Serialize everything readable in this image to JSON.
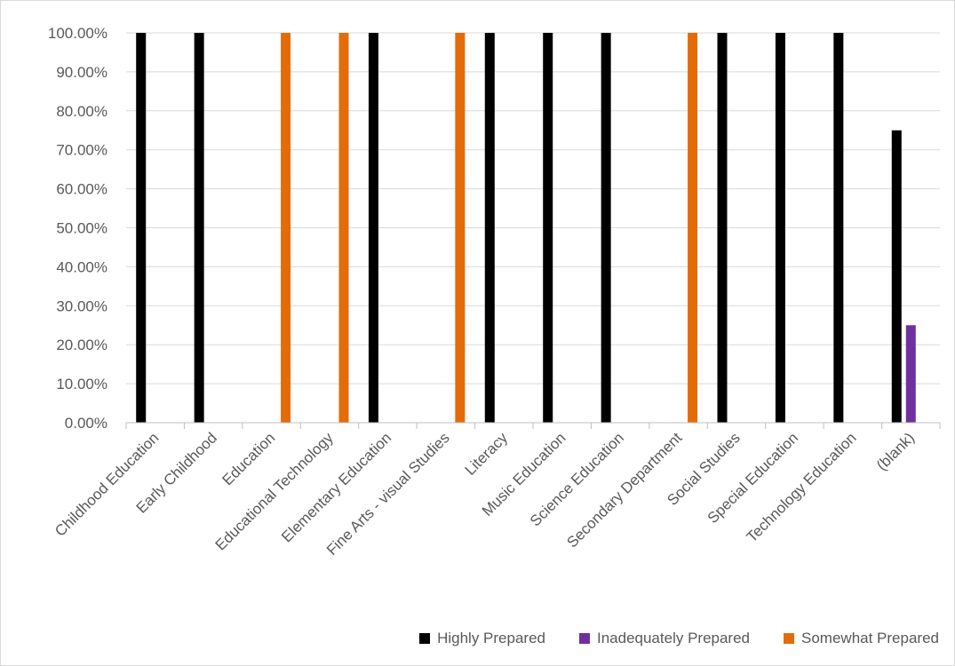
{
  "chart_data": {
    "type": "bar",
    "title": "",
    "xlabel": "",
    "ylabel": "",
    "ylim": [
      0,
      1
    ],
    "y_ticks": [
      "0.00%",
      "10.00%",
      "20.00%",
      "30.00%",
      "40.00%",
      "50.00%",
      "60.00%",
      "70.00%",
      "80.00%",
      "90.00%",
      "100.00%"
    ],
    "categories": [
      "Childhood Education",
      "Early Childhood",
      "Education",
      "Educational Technology",
      "Elementary Education",
      "Fine Arts - visual Studies",
      "Literacy",
      "Music Education",
      "Science Education",
      "Secondary Department",
      "Social Studies",
      "Special Education",
      "Technology Education",
      "(blank)"
    ],
    "series": [
      {
        "name": "Highly Prepared",
        "color": "#000000",
        "values": [
          1,
          1,
          null,
          null,
          1,
          null,
          1,
          1,
          1,
          null,
          1,
          1,
          1,
          0.75
        ]
      },
      {
        "name": "Inadequately Prepared",
        "color": "#7030a0",
        "values": [
          null,
          null,
          null,
          null,
          null,
          null,
          null,
          null,
          null,
          null,
          null,
          null,
          null,
          0.25
        ]
      },
      {
        "name": "Somewhat Prepared",
        "color": "#e36c09",
        "values": [
          null,
          null,
          1,
          1,
          null,
          1,
          null,
          null,
          null,
          1,
          null,
          null,
          null,
          null
        ]
      }
    ],
    "grid": true,
    "legend_position": "bottom-right"
  }
}
